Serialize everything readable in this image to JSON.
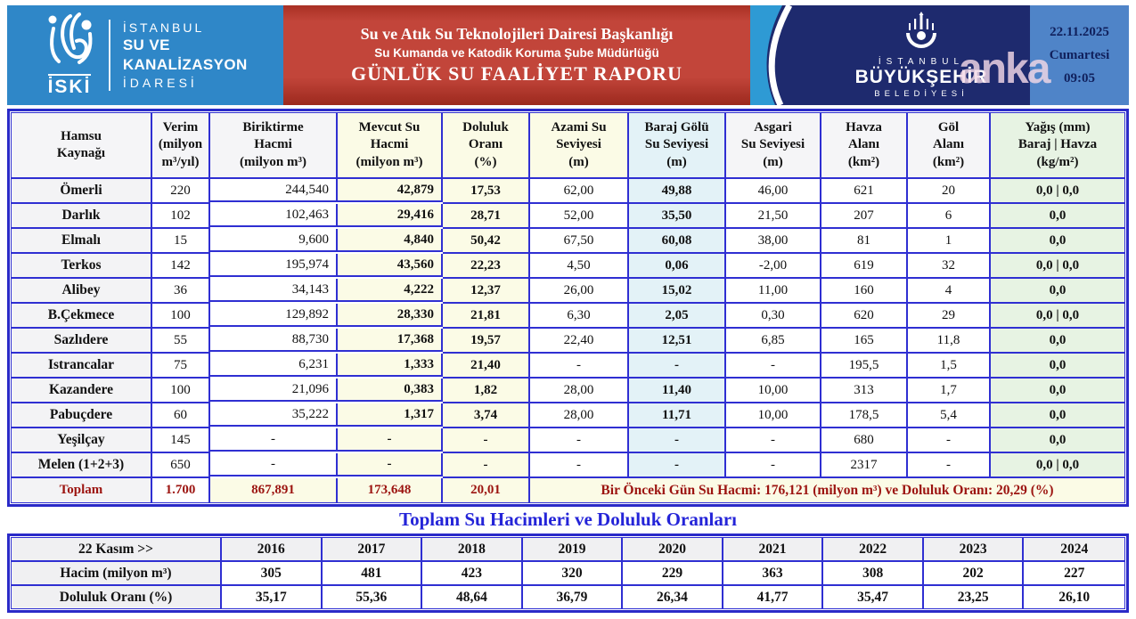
{
  "report": {
    "iski": {
      "logo_label": "İSKİ",
      "name_line1": "İSTANBUL",
      "name_line2": "SU VE KANALİZASYON",
      "name_line3": "İDARESİ"
    },
    "banner": {
      "line1": "Su ve Atık Su Teknolojileri Dairesi Başkanlığı",
      "line2": "Su Kumanda ve Katodik Koruma Şube Müdürlüğü",
      "line3": "GÜNLÜK SU FAALİYET RAPORU"
    },
    "ibb": {
      "line1": "İSTANBUL",
      "line2": "BÜYÜKŞEHİR",
      "line3": "BELEDİYESİ"
    },
    "datebox": {
      "date": "22.11.2025",
      "day": "Cumartesi",
      "time": "09:05"
    },
    "watermark": "anka"
  },
  "colors": {
    "border_blue": "#2a2ac8",
    "iski_blue": "#2f87c8",
    "banner_red": "#c2453a",
    "ibb_navy": "#1e2a6e",
    "date_blue": "#4f84c8",
    "cream": "#fbfbe6",
    "light_cyan": "#e3f2f7",
    "light_green": "#e7f3e3",
    "total_red": "#9c1410",
    "title_blue": "#2424d8"
  },
  "main_table": {
    "columns": [
      {
        "lines": [
          "Hamsu",
          "Kaynağı"
        ]
      },
      {
        "lines": [
          "Verim",
          "(milyon",
          "m³/yıl)"
        ]
      },
      {
        "lines": [
          "Biriktirme",
          "Hacmi",
          "(milyon m³)"
        ]
      },
      {
        "lines": [
          "Mevcut Su",
          "Hacmi",
          "(milyon m³)"
        ]
      },
      {
        "lines": [
          "Doluluk",
          "Oranı",
          "(%)"
        ]
      },
      {
        "lines": [
          "Azami Su",
          "Seviyesi",
          "(m)"
        ]
      },
      {
        "lines": [
          "Baraj Gölü",
          "Su Seviyesi",
          "(m)"
        ]
      },
      {
        "lines": [
          "Asgari",
          "Su Seviyesi",
          "(m)"
        ]
      },
      {
        "lines": [
          "Havza",
          "Alanı",
          "(km²)"
        ]
      },
      {
        "lines": [
          "Göl",
          "Alanı",
          "(km²)"
        ]
      },
      {
        "lines": [
          "Yağış (mm)",
          "Baraj | Havza",
          "(kg/m²)"
        ]
      }
    ],
    "rows": [
      {
        "name": "Ömerli",
        "values": [
          "220",
          "244,540",
          "42,879",
          "17,53",
          "62,00",
          "49,88",
          "46,00",
          "621",
          "20",
          "0,0 | 0,0"
        ]
      },
      {
        "name": "Darlık",
        "values": [
          "102",
          "102,463",
          "29,416",
          "28,71",
          "52,00",
          "35,50",
          "21,50",
          "207",
          "6",
          "0,0"
        ]
      },
      {
        "name": "Elmalı",
        "values": [
          "15",
          "9,600",
          "4,840",
          "50,42",
          "67,50",
          "60,08",
          "38,00",
          "81",
          "1",
          "0,0"
        ]
      },
      {
        "name": "Terkos",
        "values": [
          "142",
          "195,974",
          "43,560",
          "22,23",
          "4,50",
          "0,06",
          "-2,00",
          "619",
          "32",
          "0,0 | 0,0"
        ]
      },
      {
        "name": "Alibey",
        "values": [
          "36",
          "34,143",
          "4,222",
          "12,37",
          "26,00",
          "15,02",
          "11,00",
          "160",
          "4",
          "0,0"
        ]
      },
      {
        "name": "B.Çekmece",
        "values": [
          "100",
          "129,892",
          "28,330",
          "21,81",
          "6,30",
          "2,05",
          "0,30",
          "620",
          "29",
          "0,0 | 0,0"
        ]
      },
      {
        "name": "Sazlıdere",
        "values": [
          "55",
          "88,730",
          "17,368",
          "19,57",
          "22,40",
          "12,51",
          "6,85",
          "165",
          "11,8",
          "0,0"
        ]
      },
      {
        "name": "Istrancalar",
        "values": [
          "75",
          "6,231",
          "1,333",
          "21,40",
          "-",
          "-",
          "-",
          "195,5",
          "1,5",
          "0,0"
        ]
      },
      {
        "name": "Kazandere",
        "values": [
          "100",
          "21,096",
          "0,383",
          "1,82",
          "28,00",
          "11,40",
          "10,00",
          "313",
          "1,7",
          "0,0"
        ]
      },
      {
        "name": "Pabuçdere",
        "values": [
          "60",
          "35,222",
          "1,317",
          "3,74",
          "28,00",
          "11,71",
          "10,00",
          "178,5",
          "5,4",
          "0,0"
        ]
      },
      {
        "name": "Yeşilçay",
        "values": [
          "145",
          "-",
          "-",
          "-",
          "-",
          "-",
          "-",
          "680",
          "-",
          "0,0"
        ]
      },
      {
        "name": "Melen (1+2+3)",
        "values": [
          "650",
          "-",
          "-",
          "-",
          "-",
          "-",
          "-",
          "2317",
          "-",
          "0,0 | 0,0"
        ]
      }
    ],
    "toplam": {
      "label": "Toplam",
      "verim": "1.700",
      "biriktirme": "867,891",
      "mevcut": "173,648",
      "doluluk": "20,01",
      "note": "Bir Önceki Gün Su Hacmi: 176,121 (milyon m³) ve Doluluk Oranı: 20,29 (%)"
    }
  },
  "history": {
    "title": "Toplam Su Hacimleri ve Doluluk Oranları",
    "row_label": "22 Kasım  >>",
    "years": [
      "2016",
      "2017",
      "2018",
      "2019",
      "2020",
      "2021",
      "2022",
      "2023",
      "2024"
    ],
    "hacim_label": "Hacim (milyon m³)",
    "hacim": [
      "305",
      "481",
      "423",
      "320",
      "229",
      "363",
      "308",
      "202",
      "227"
    ],
    "doluluk_label": "Doluluk Oranı (%)",
    "doluluk": [
      "35,17",
      "55,36",
      "48,64",
      "36,79",
      "26,34",
      "41,77",
      "35,47",
      "23,25",
      "26,10"
    ]
  }
}
